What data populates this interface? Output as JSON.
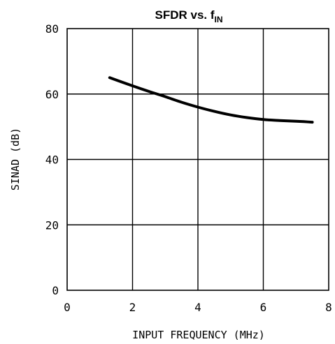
{
  "chart_data": {
    "type": "line",
    "title_main": "SFDR vs. f",
    "title_sub": "IN",
    "xlabel": "INPUT FREQUENCY (MHz)",
    "ylabel": "SINAD (dB)",
    "xlim": [
      0,
      8
    ],
    "ylim": [
      0,
      80
    ],
    "x_ticks": [
      "0",
      "2",
      "4",
      "6",
      "8"
    ],
    "y_ticks": [
      "0",
      "20",
      "40",
      "60",
      "80"
    ],
    "grid": true,
    "series": [
      {
        "x": [
          1.3,
          2.0,
          2.5,
          3.0,
          3.5,
          4.0,
          4.5,
          5.0,
          5.5,
          6.0,
          6.5,
          7.0,
          7.5
        ],
        "y": [
          65.0,
          62.5,
          60.8,
          59.2,
          57.5,
          56.0,
          54.7,
          53.6,
          52.8,
          52.2,
          51.9,
          51.7,
          51.4
        ]
      }
    ]
  }
}
